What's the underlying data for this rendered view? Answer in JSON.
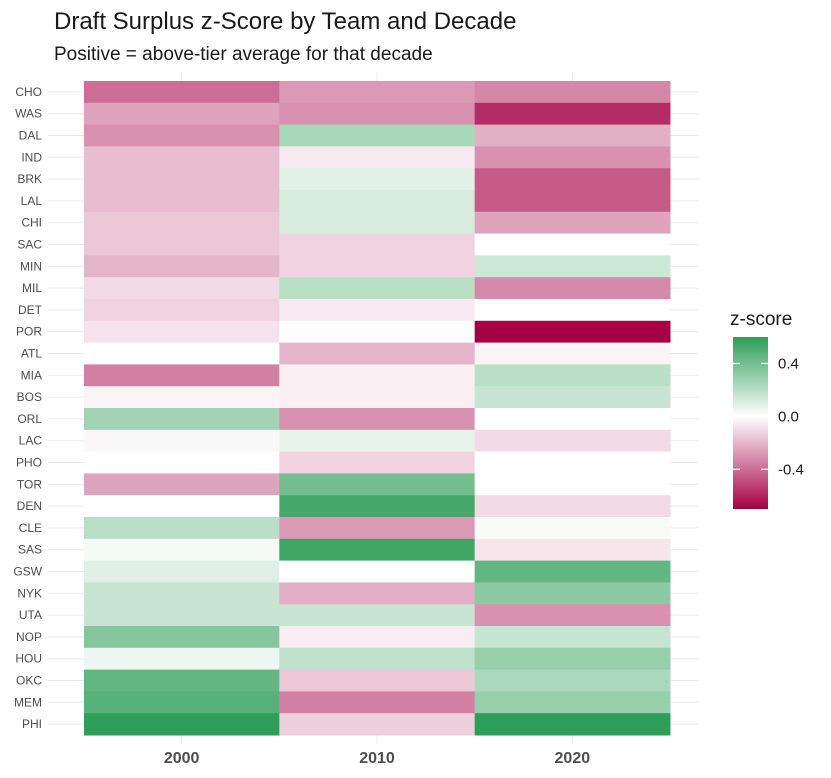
{
  "chart_data": {
    "type": "heatmap",
    "title": "Draft Surplus z-Score by Team and Decade",
    "subtitle": "Positive = above-tier average for that decade",
    "x_categories": [
      "2000",
      "2010",
      "2020"
    ],
    "y_categories": [
      "CHO",
      "WAS",
      "DAL",
      "IND",
      "BRK",
      "LAL",
      "CHI",
      "SAC",
      "MIN",
      "MIL",
      "DET",
      "POR",
      "ATL",
      "MIA",
      "BOS",
      "ORL",
      "LAC",
      "PHO",
      "TOR",
      "DEN",
      "CLE",
      "SAS",
      "GSW",
      "NYK",
      "UTA",
      "NOP",
      "HOU",
      "OKC",
      "MEM",
      "PHI"
    ],
    "values": [
      [
        -0.4,
        -0.28,
        -0.33
      ],
      [
        -0.25,
        -0.3,
        -0.58
      ],
      [
        -0.3,
        0.25,
        -0.22
      ],
      [
        -0.18,
        -0.06,
        -0.3
      ],
      [
        -0.18,
        0.08,
        -0.45
      ],
      [
        -0.18,
        0.12,
        -0.45
      ],
      [
        -0.15,
        0.12,
        -0.25
      ],
      [
        -0.15,
        -0.12,
        0.0
      ],
      [
        -0.2,
        -0.12,
        0.15
      ],
      [
        -0.1,
        0.2,
        -0.32
      ],
      [
        -0.12,
        -0.06,
        0.0
      ],
      [
        -0.08,
        0.01,
        -0.7
      ],
      [
        0.0,
        -0.2,
        -0.03
      ],
      [
        -0.35,
        -0.04,
        0.2
      ],
      [
        -0.03,
        -0.04,
        0.16
      ],
      [
        0.27,
        -0.3,
        0.0
      ],
      [
        -0.02,
        0.07,
        -0.1
      ],
      [
        0.0,
        -0.12,
        0.0
      ],
      [
        -0.25,
        0.4,
        0.0
      ],
      [
        0.0,
        0.53,
        -0.1
      ],
      [
        0.2,
        -0.28,
        0.02
      ],
      [
        0.03,
        0.55,
        -0.07
      ],
      [
        0.09,
        0.0,
        0.45
      ],
      [
        0.16,
        -0.22,
        0.33
      ],
      [
        0.16,
        0.16,
        -0.3
      ],
      [
        0.35,
        -0.05,
        0.16
      ],
      [
        0.05,
        0.18,
        0.3
      ],
      [
        0.45,
        -0.15,
        0.24
      ],
      [
        0.48,
        -0.35,
        0.3
      ],
      [
        0.6,
        -0.13,
        0.6
      ]
    ],
    "color_scale": {
      "low_color": "#a50045",
      "mid_color": "#ffffff",
      "high_color": "#2e9e58",
      "domain": [
        -0.7,
        0.0,
        0.6
      ]
    },
    "legend": {
      "title": "z-score",
      "ticks": [
        0.4,
        0.0,
        -0.4
      ],
      "tick_labels": [
        "0.4",
        "0.0",
        "-0.4"
      ],
      "position": "right"
    },
    "grid": true
  }
}
